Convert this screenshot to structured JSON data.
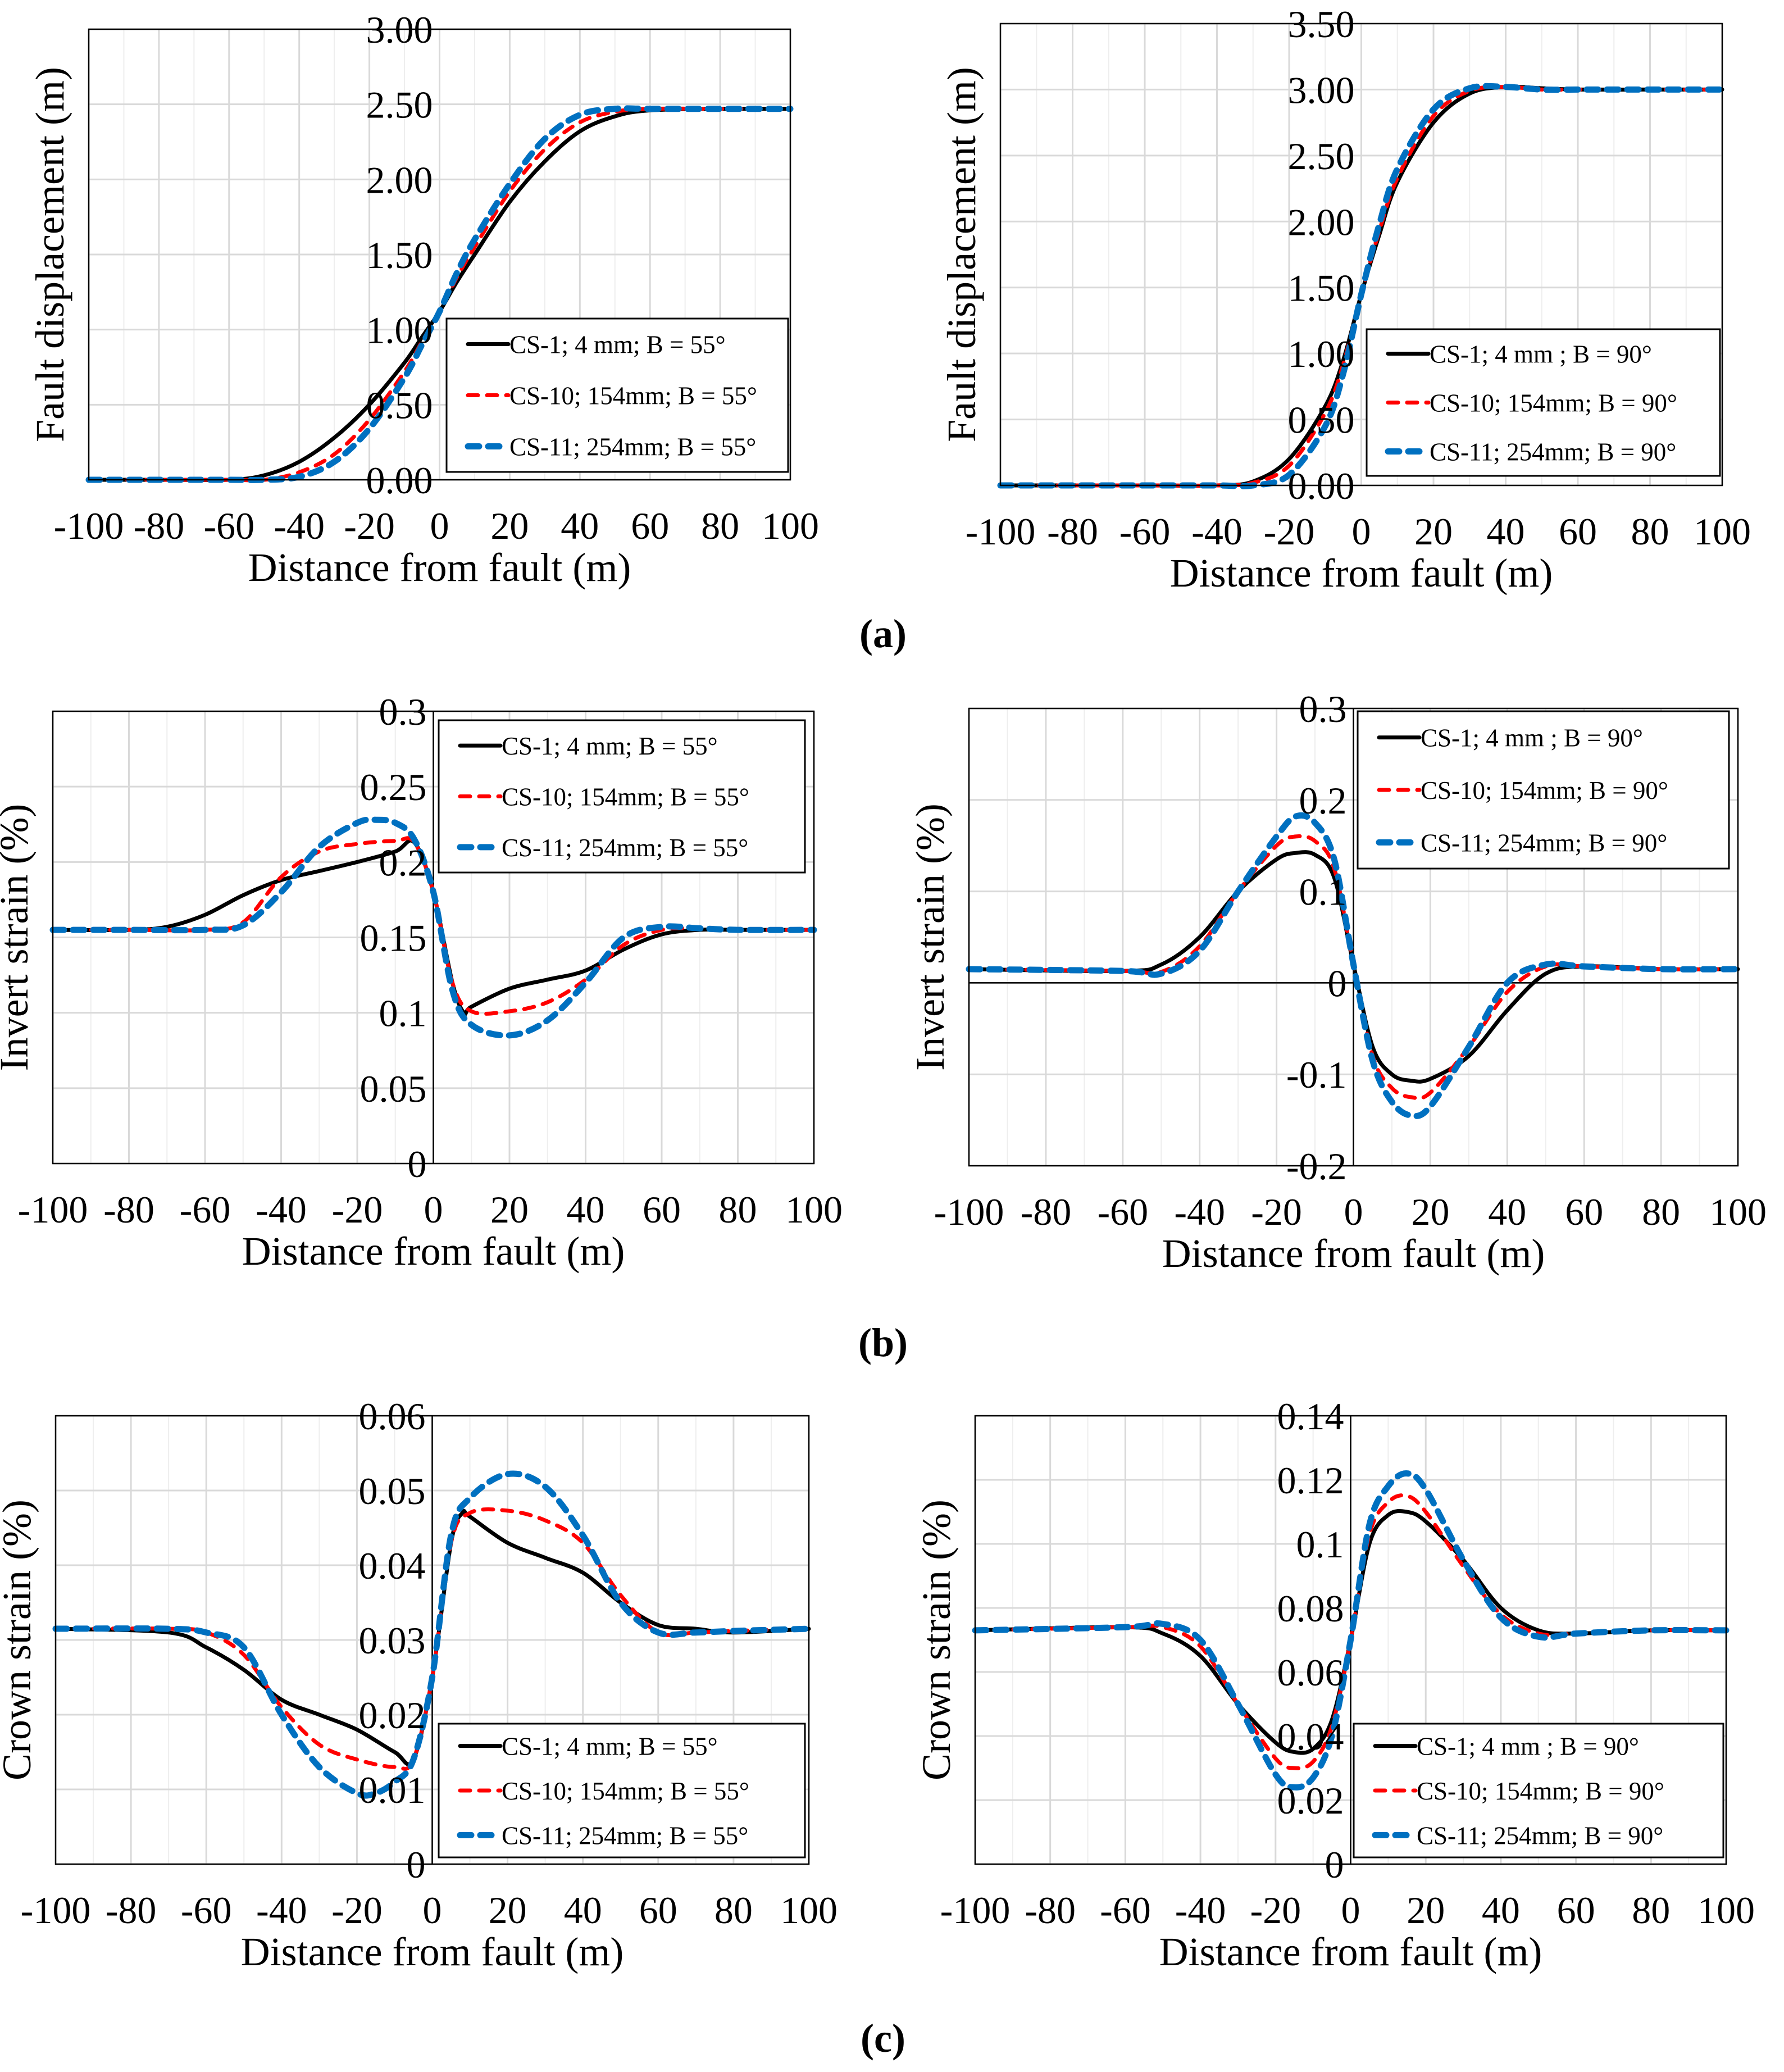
{
  "colors": {
    "cs1": "#000000",
    "cs10": "#ff0000",
    "cs11": "#0070c0",
    "grid": "#d9d9d9"
  },
  "captions": [
    "(a)",
    "(b)",
    "(c)"
  ],
  "chart_data": [
    {
      "id": "a-left",
      "type": "line",
      "panel": "(a)",
      "xlabel": "Distance from fault (m)",
      "ylabel": "Fault displacement (m)",
      "xlim": [
        -100,
        100
      ],
      "ylim": [
        0,
        3
      ],
      "xticks": [
        -100,
        -80,
        -60,
        -40,
        -20,
        0,
        20,
        40,
        60,
        80,
        100
      ],
      "yticks": [
        0,
        0.5,
        1,
        1.5,
        2,
        2.5,
        3
      ],
      "ytick_labels": [
        "0.00",
        "0.50",
        "1.00",
        "1.50",
        "2.00",
        "2.50",
        "3.00"
      ],
      "grid": true,
      "zero_axis_line": false,
      "legend_position": "bottom-right",
      "series": [
        {
          "name": "CS-1; 4 mm; B = 55°",
          "style": "cs1",
          "x": [
            -100,
            -80,
            -60,
            -50,
            -40,
            -30,
            -20,
            -10,
            -5,
            0,
            5,
            10,
            20,
            30,
            40,
            50,
            60,
            80,
            100
          ],
          "y": [
            0,
            0,
            0,
            0.03,
            0.12,
            0.28,
            0.5,
            0.78,
            0.95,
            1.12,
            1.32,
            1.5,
            1.85,
            2.12,
            2.32,
            2.42,
            2.46,
            2.47,
            2.47
          ]
        },
        {
          "name": "CS-10; 154mm; B = 55°",
          "style": "cs10",
          "x": [
            -100,
            -80,
            -60,
            -50,
            -40,
            -30,
            -20,
            -10,
            -5,
            0,
            5,
            10,
            20,
            30,
            40,
            50,
            60,
            80,
            100
          ],
          "y": [
            0,
            0,
            0,
            0,
            0.05,
            0.17,
            0.4,
            0.72,
            0.92,
            1.12,
            1.35,
            1.55,
            1.92,
            2.2,
            2.38,
            2.45,
            2.47,
            2.47,
            2.47
          ]
        },
        {
          "name": "CS-11; 254mm; B = 55°",
          "style": "cs11",
          "x": [
            -100,
            -80,
            -60,
            -50,
            -40,
            -30,
            -20,
            -10,
            -5,
            0,
            5,
            10,
            20,
            30,
            40,
            50,
            60,
            80,
            100
          ],
          "y": [
            0,
            0,
            0,
            0,
            0.02,
            0.12,
            0.34,
            0.68,
            0.9,
            1.12,
            1.38,
            1.6,
            1.97,
            2.27,
            2.43,
            2.47,
            2.47,
            2.47,
            2.47
          ]
        }
      ]
    },
    {
      "id": "a-right",
      "type": "line",
      "panel": "(a)",
      "xlabel": "Distance from fault (m)",
      "ylabel": "Fault displacement (m)",
      "xlim": [
        -100,
        100
      ],
      "ylim": [
        0,
        3.5
      ],
      "xticks": [
        -100,
        -80,
        -60,
        -40,
        -20,
        0,
        20,
        40,
        60,
        80,
        100
      ],
      "yticks": [
        0,
        0.5,
        1,
        1.5,
        2,
        2.5,
        3,
        3.5
      ],
      "ytick_labels": [
        "0.00",
        "0.50",
        "1.00",
        "1.50",
        "2.00",
        "2.50",
        "3.00",
        "3.50"
      ],
      "grid": true,
      "zero_axis_line": false,
      "legend_position": "bottom-right",
      "series": [
        {
          "name": "CS-1; 4 mm ; B = 90°",
          "style": "cs1",
          "x": [
            -100,
            -60,
            -40,
            -30,
            -20,
            -10,
            -5,
            0,
            5,
            10,
            20,
            30,
            40,
            50,
            60,
            80,
            100
          ],
          "y": [
            0,
            0,
            0,
            0.03,
            0.2,
            0.6,
            0.95,
            1.45,
            1.9,
            2.3,
            2.75,
            2.97,
            3.02,
            3.01,
            3.0,
            3.0,
            3.0
          ]
        },
        {
          "name": "CS-10; 154mm; B = 90°",
          "style": "cs10",
          "x": [
            -100,
            -60,
            -40,
            -30,
            -20,
            -10,
            -5,
            0,
            5,
            10,
            20,
            30,
            40,
            50,
            60,
            80,
            100
          ],
          "y": [
            0,
            0,
            0,
            0.02,
            0.15,
            0.55,
            0.92,
            1.45,
            1.93,
            2.33,
            2.8,
            2.99,
            3.02,
            3.0,
            3.0,
            3.0,
            3.0
          ]
        },
        {
          "name": "CS-11; 254mm; B = 90°",
          "style": "cs11",
          "x": [
            -100,
            -60,
            -40,
            -30,
            -20,
            -10,
            -5,
            0,
            5,
            10,
            20,
            30,
            40,
            50,
            60,
            80,
            100
          ],
          "y": [
            0,
            0,
            0,
            0,
            0.08,
            0.45,
            0.85,
            1.45,
            1.98,
            2.4,
            2.85,
            3.01,
            3.02,
            3.0,
            3.0,
            3.0,
            3.0
          ]
        }
      ]
    },
    {
      "id": "b-left",
      "type": "line",
      "panel": "(b)",
      "xlabel": "Distance from fault (m)",
      "ylabel": "Invert strain (%)",
      "xlim": [
        -100,
        100
      ],
      "ylim": [
        0,
        0.3
      ],
      "xticks": [
        -100,
        -80,
        -60,
        -40,
        -20,
        0,
        20,
        40,
        60,
        80,
        100
      ],
      "yticks": [
        0,
        0.05,
        0.1,
        0.15,
        0.2,
        0.25,
        0.3
      ],
      "ytick_labels": [
        "0",
        "0.05",
        "0.1",
        "0.15",
        "0.2",
        "0.25",
        "0.3"
      ],
      "grid": true,
      "zero_axis_line": true,
      "legend_position": "top-right",
      "series": [
        {
          "name": "CS-1; 4 mm; B = 55°",
          "style": "cs1",
          "x": [
            -100,
            -80,
            -70,
            -60,
            -50,
            -40,
            -30,
            -20,
            -10,
            -5,
            0,
            5,
            8,
            10,
            20,
            30,
            40,
            50,
            60,
            70,
            80,
            100
          ],
          "y": [
            0.155,
            0.155,
            0.157,
            0.165,
            0.178,
            0.188,
            0.194,
            0.2,
            0.207,
            0.213,
            0.18,
            0.12,
            0.1,
            0.104,
            0.116,
            0.122,
            0.128,
            0.142,
            0.152,
            0.155,
            0.155,
            0.155
          ]
        },
        {
          "name": "CS-10; 154mm; B = 55°",
          "style": "cs10",
          "x": [
            -100,
            -80,
            -60,
            -50,
            -40,
            -30,
            -20,
            -10,
            -5,
            0,
            5,
            10,
            20,
            30,
            40,
            50,
            60,
            70,
            80,
            100
          ],
          "y": [
            0.155,
            0.155,
            0.155,
            0.16,
            0.19,
            0.207,
            0.212,
            0.214,
            0.213,
            0.18,
            0.12,
            0.101,
            0.101,
            0.107,
            0.122,
            0.145,
            0.155,
            0.156,
            0.155,
            0.155
          ]
        },
        {
          "name": "CS-11; 254mm; B = 55°",
          "style": "cs11",
          "x": [
            -100,
            -80,
            -60,
            -50,
            -40,
            -30,
            -20,
            -15,
            -10,
            -5,
            0,
            5,
            10,
            20,
            30,
            40,
            50,
            60,
            70,
            80,
            100
          ],
          "y": [
            0.155,
            0.155,
            0.155,
            0.158,
            0.18,
            0.21,
            0.226,
            0.228,
            0.226,
            0.215,
            0.18,
            0.115,
            0.092,
            0.085,
            0.095,
            0.12,
            0.15,
            0.157,
            0.156,
            0.155,
            0.155
          ]
        }
      ]
    },
    {
      "id": "b-right",
      "type": "line",
      "panel": "(b)",
      "xlabel": "Distance from fault (m)",
      "ylabel": "Invert strain (%)",
      "xlim": [
        -100,
        100
      ],
      "ylim": [
        -0.2,
        0.3
      ],
      "xticks": [
        -100,
        -80,
        -60,
        -40,
        -20,
        0,
        20,
        40,
        60,
        80,
        100
      ],
      "yticks": [
        -0.2,
        -0.1,
        0,
        0.1,
        0.2,
        0.3
      ],
      "ytick_labels": [
        "-0.2",
        "-0.1",
        "0",
        "0.1",
        "0.2",
        "0.3"
      ],
      "grid": true,
      "zero_axis_line": true,
      "legend_position": "top-right",
      "series": [
        {
          "name": "CS-1; 4 mm ; B = 90°",
          "style": "cs1",
          "x": [
            -100,
            -60,
            -50,
            -40,
            -30,
            -20,
            -15,
            -10,
            -5,
            0,
            5,
            10,
            15,
            20,
            30,
            40,
            50,
            60,
            80,
            100
          ],
          "y": [
            0.015,
            0.013,
            0.02,
            0.05,
            0.1,
            0.135,
            0.142,
            0.14,
            0.115,
            0.02,
            -0.07,
            -0.1,
            -0.107,
            -0.105,
            -0.08,
            -0.03,
            0.01,
            0.018,
            0.015,
            0.015
          ]
        },
        {
          "name": "CS-10; 154mm; B = 90°",
          "style": "cs10",
          "x": [
            -100,
            -60,
            -50,
            -40,
            -30,
            -20,
            -15,
            -10,
            -5,
            0,
            5,
            10,
            15,
            20,
            30,
            40,
            50,
            60,
            80,
            100
          ],
          "y": [
            0.015,
            0.013,
            0.012,
            0.04,
            0.1,
            0.15,
            0.16,
            0.155,
            0.125,
            0.02,
            -0.08,
            -0.115,
            -0.125,
            -0.12,
            -0.07,
            -0.01,
            0.018,
            0.018,
            0.015,
            0.015
          ]
        },
        {
          "name": "CS-11; 254mm; B = 90°",
          "style": "cs11",
          "x": [
            -100,
            -60,
            -50,
            -40,
            -30,
            -20,
            -15,
            -10,
            -5,
            0,
            5,
            10,
            15,
            20,
            30,
            40,
            50,
            60,
            80,
            100
          ],
          "y": [
            0.015,
            0.013,
            0.01,
            0.035,
            0.1,
            0.16,
            0.182,
            0.175,
            0.135,
            0.02,
            -0.085,
            -0.13,
            -0.145,
            -0.135,
            -0.07,
            0,
            0.02,
            0.018,
            0.015,
            0.015
          ]
        }
      ]
    },
    {
      "id": "c-left",
      "type": "line",
      "panel": "(c)",
      "xlabel": "Distance from fault (m)",
      "ylabel": "Crown strain (%)",
      "xlim": [
        -100,
        100
      ],
      "ylim": [
        0,
        0.06
      ],
      "xticks": [
        -100,
        -80,
        -60,
        -40,
        -20,
        0,
        20,
        40,
        60,
        80,
        100
      ],
      "yticks": [
        0,
        0.01,
        0.02,
        0.03,
        0.04,
        0.05,
        0.06
      ],
      "ytick_labels": [
        "0",
        "0.01",
        "0.02",
        "0.03",
        "0.04",
        "0.05",
        "0.06"
      ],
      "grid": true,
      "zero_axis_line": true,
      "legend_position": "bottom-right",
      "series": [
        {
          "name": "CS-1; 4 mm; B = 55°",
          "style": "cs1",
          "x": [
            -100,
            -70,
            -60,
            -50,
            -40,
            -30,
            -20,
            -10,
            -5,
            0,
            5,
            8,
            10,
            20,
            30,
            40,
            50,
            60,
            70,
            80,
            100
          ],
          "y": [
            0.0315,
            0.031,
            0.029,
            0.026,
            0.022,
            0.02,
            0.018,
            0.015,
            0.014,
            0.025,
            0.043,
            0.047,
            0.0465,
            0.043,
            0.041,
            0.039,
            0.035,
            0.032,
            0.0315,
            0.031,
            0.0315
          ]
        },
        {
          "name": "CS-10; 154mm; B = 55°",
          "style": "cs10",
          "x": [
            -100,
            -70,
            -60,
            -50,
            -40,
            -30,
            -20,
            -10,
            -5,
            0,
            5,
            10,
            20,
            30,
            40,
            50,
            60,
            70,
            80,
            100
          ],
          "y": [
            0.0315,
            0.0315,
            0.031,
            0.028,
            0.021,
            0.016,
            0.014,
            0.013,
            0.014,
            0.025,
            0.043,
            0.047,
            0.0473,
            0.046,
            0.043,
            0.036,
            0.031,
            0.031,
            0.0312,
            0.0315
          ]
        },
        {
          "name": "CS-11; 254mm; B = 55°",
          "style": "cs11",
          "x": [
            -100,
            -70,
            -60,
            -50,
            -40,
            -30,
            -20,
            -15,
            -10,
            -5,
            0,
            5,
            10,
            20,
            30,
            40,
            50,
            60,
            70,
            80,
            100
          ],
          "y": [
            0.0315,
            0.0315,
            0.031,
            0.029,
            0.02,
            0.013,
            0.0095,
            0.0095,
            0.011,
            0.014,
            0.025,
            0.044,
            0.049,
            0.0522,
            0.0505,
            0.044,
            0.035,
            0.031,
            0.031,
            0.0312,
            0.0315
          ]
        }
      ]
    },
    {
      "id": "c-right",
      "type": "line",
      "panel": "(c)",
      "xlabel": "Distance from fault (m)",
      "ylabel": "Crown strain (%)",
      "xlim": [
        -100,
        100
      ],
      "ylim": [
        0,
        0.14
      ],
      "xticks": [
        -100,
        -80,
        -60,
        -40,
        -20,
        0,
        20,
        40,
        60,
        80,
        100
      ],
      "yticks": [
        0,
        0.02,
        0.04,
        0.06,
        0.08,
        0.1,
        0.12,
        0.14
      ],
      "ytick_labels": [
        "0",
        "0.02",
        "0.04",
        "0.06",
        "0.08",
        "0.1",
        "0.12",
        "0.14"
      ],
      "grid": true,
      "zero_axis_line": true,
      "legend_position": "bottom-right",
      "series": [
        {
          "name": "CS-1; 4 mm ; B = 90°",
          "style": "cs1",
          "x": [
            -100,
            -60,
            -50,
            -40,
            -30,
            -20,
            -15,
            -10,
            -5,
            0,
            5,
            10,
            15,
            20,
            30,
            40,
            50,
            60,
            80,
            100
          ],
          "y": [
            0.073,
            0.074,
            0.072,
            0.065,
            0.05,
            0.038,
            0.035,
            0.036,
            0.045,
            0.07,
            0.1,
            0.109,
            0.11,
            0.107,
            0.095,
            0.08,
            0.073,
            0.072,
            0.073,
            0.073
          ]
        },
        {
          "name": "CS-10; 154mm; B = 90°",
          "style": "cs10",
          "x": [
            -100,
            -60,
            -50,
            -40,
            -30,
            -20,
            -15,
            -10,
            -5,
            0,
            5,
            10,
            15,
            20,
            30,
            40,
            50,
            60,
            80,
            100
          ],
          "y": [
            0.073,
            0.074,
            0.074,
            0.068,
            0.05,
            0.033,
            0.03,
            0.032,
            0.043,
            0.07,
            0.103,
            0.113,
            0.115,
            0.11,
            0.093,
            0.078,
            0.072,
            0.072,
            0.073,
            0.073
          ]
        },
        {
          "name": "CS-11; 254mm; B = 90°",
          "style": "cs11",
          "x": [
            -100,
            -60,
            -50,
            -40,
            -30,
            -20,
            -15,
            -10,
            -5,
            0,
            5,
            10,
            15,
            20,
            30,
            40,
            50,
            60,
            80,
            100
          ],
          "y": [
            0.073,
            0.074,
            0.075,
            0.07,
            0.05,
            0.028,
            0.024,
            0.027,
            0.04,
            0.07,
            0.106,
            0.118,
            0.122,
            0.117,
            0.095,
            0.077,
            0.071,
            0.072,
            0.073,
            0.073
          ]
        }
      ]
    }
  ]
}
